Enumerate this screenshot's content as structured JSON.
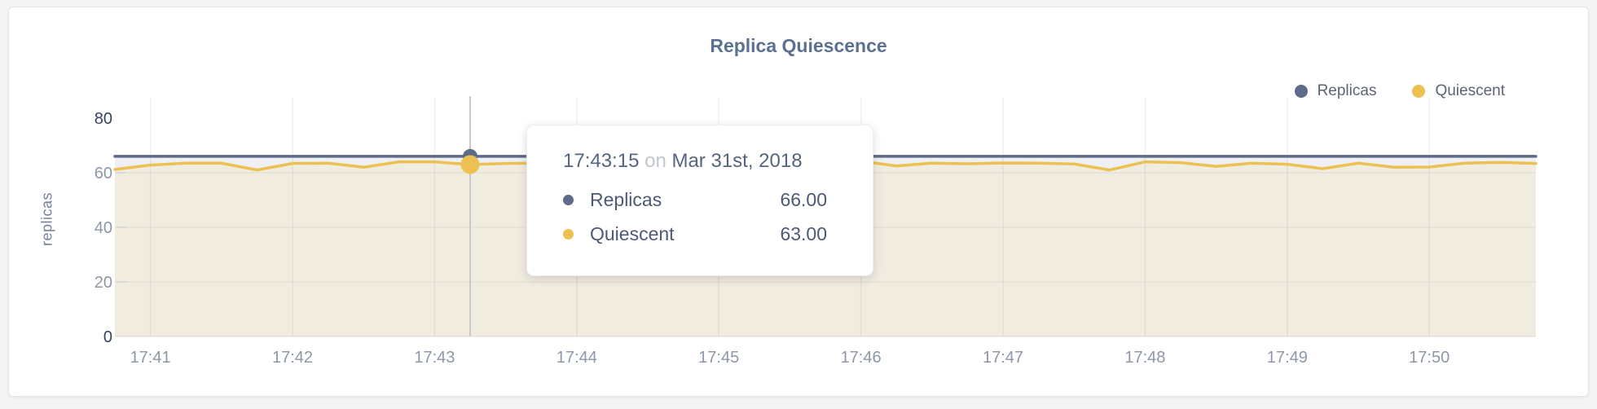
{
  "page_background": "#f4f4f5",
  "widget": {
    "title": "Replica Quiescence"
  },
  "legend": {
    "items": [
      {
        "label": "Replicas",
        "color": "#5d6b88"
      },
      {
        "label": "Quiescent",
        "color": "#ecc152"
      }
    ]
  },
  "tooltip": {
    "time": "17:43:15",
    "conjunction": "on",
    "date": "Mar 31st, 2018",
    "rows": [
      {
        "label": "Replicas",
        "value": "66.00",
        "color": "#5d6b88"
      },
      {
        "label": "Quiescent",
        "value": "63.00",
        "color": "#ecc152"
      }
    ]
  },
  "chart_data": {
    "type": "line",
    "title": "Replica Quiescence",
    "xlabel": "",
    "ylabel": "replicas",
    "ylim": [
      0,
      80
    ],
    "yticks": [
      0,
      20,
      40,
      60,
      80
    ],
    "grid": true,
    "legend_position": "top-right",
    "x_start": "17:40:45",
    "x_step_seconds": 15,
    "xticks": [
      "17:41",
      "17:42",
      "17:43",
      "17:44",
      "17:45",
      "17:46",
      "17:47",
      "17:48",
      "17:49",
      "17:50"
    ],
    "series": [
      {
        "name": "Replicas",
        "color": "#5d6b88",
        "fill": "#eef0f4",
        "values": [
          66,
          66,
          66,
          66,
          66,
          66,
          66,
          66,
          66,
          66,
          66,
          66,
          66,
          66,
          66,
          66,
          66,
          66,
          66,
          66,
          66,
          66,
          66,
          66,
          66,
          66,
          66,
          66,
          66,
          66,
          66,
          66,
          66,
          66,
          66,
          66,
          66,
          66,
          66,
          66,
          66
        ]
      },
      {
        "name": "Quiescent",
        "color": "#ecc152",
        "fill": "#f1ece0",
        "values": [
          61.2,
          62.8,
          63.5,
          63.5,
          61.0,
          63.4,
          63.5,
          62.0,
          64.0,
          64.0,
          63.0,
          63.4,
          63.5,
          64.0,
          63.5,
          63.4,
          64.0,
          63.5,
          63.0,
          63.5,
          64.0,
          64.2,
          62.5,
          63.5,
          63.3,
          63.6,
          63.5,
          63.2,
          61.0,
          64.0,
          63.7,
          62.3,
          63.5,
          63.1,
          61.5,
          63.5,
          62.0,
          62.1,
          63.5,
          63.8,
          63.4
        ]
      }
    ],
    "hover": {
      "index": 10,
      "time": "17:43:15",
      "date": "Mar 31st, 2018",
      "values": {
        "Replicas": 66.0,
        "Quiescent": 63.0
      }
    }
  }
}
